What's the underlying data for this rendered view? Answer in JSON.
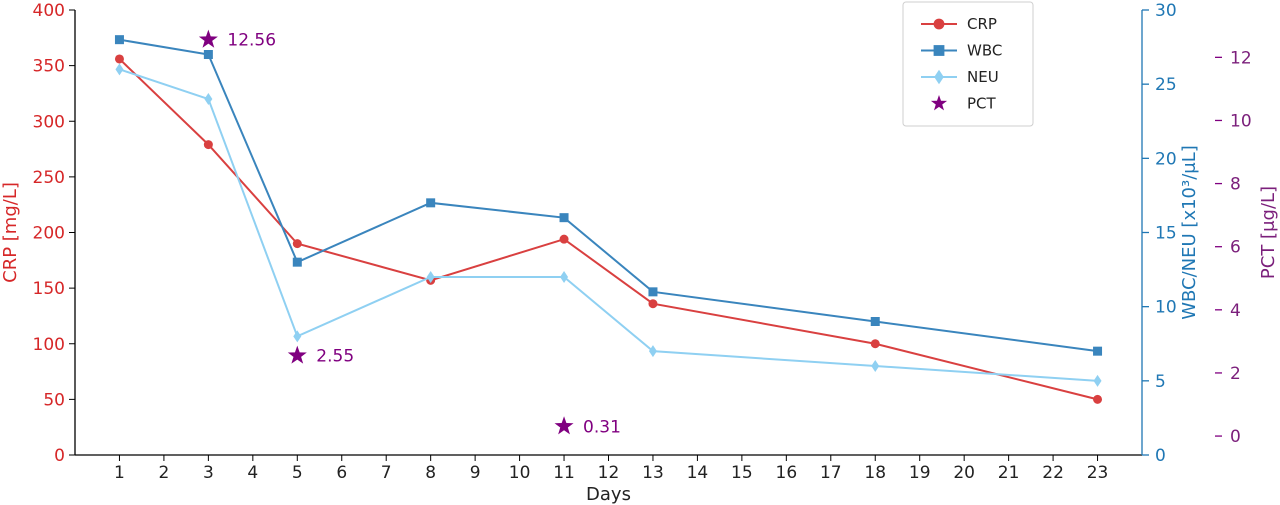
{
  "chart_data": {
    "type": "line",
    "xlabel": "Days",
    "x_ticks": [
      1,
      2,
      3,
      4,
      5,
      6,
      7,
      8,
      9,
      10,
      11,
      12,
      13,
      14,
      15,
      16,
      17,
      18,
      19,
      20,
      21,
      22,
      23
    ],
    "xlim": [
      0,
      24
    ],
    "axes": {
      "crp": {
        "label": "CRP [mg/L]",
        "ylim": [
          0,
          400
        ],
        "ticks": [
          0,
          50,
          100,
          150,
          200,
          250,
          300,
          350,
          400
        ],
        "color": "#d62728"
      },
      "wbc_neu": {
        "label": "WBC/NEU [x10³/μL]",
        "ylim": [
          0,
          30
        ],
        "ticks": [
          0,
          5,
          10,
          15,
          20,
          25,
          30
        ],
        "color": "#1f77b4"
      },
      "pct": {
        "label": "PCT [μg/L]",
        "ylim": [
          -0.6,
          13.5
        ],
        "ticks": [
          0,
          2,
          4,
          6,
          8,
          10,
          12
        ],
        "color": "#800080"
      }
    },
    "series": [
      {
        "name": "CRP",
        "axis": "crp",
        "color": "#d94040",
        "marker": "circle",
        "x": [
          1,
          3,
          5,
          8,
          11,
          13,
          18,
          23
        ],
        "y": [
          356,
          279,
          190,
          157,
          194,
          136,
          100,
          50
        ]
      },
      {
        "name": "WBC",
        "axis": "wbc_neu",
        "color": "#3a85bd",
        "marker": "square",
        "x": [
          1,
          3,
          5,
          8,
          11,
          13,
          18,
          23
        ],
        "y": [
          28,
          27,
          13,
          17,
          16,
          11,
          9,
          7
        ]
      },
      {
        "name": "NEU",
        "axis": "wbc_neu",
        "color": "#8fd0f2",
        "marker": "diamond",
        "x": [
          1,
          3,
          5,
          8,
          11,
          13,
          18,
          23
        ],
        "y": [
          26,
          24,
          8,
          12,
          12,
          7,
          6,
          5
        ]
      },
      {
        "name": "PCT",
        "axis": "pct",
        "color": "#800080",
        "marker": "star",
        "x": [
          3,
          5,
          11
        ],
        "y": [
          12.56,
          2.55,
          0.31
        ],
        "labels": [
          "12.56",
          "2.55",
          "0.31"
        ]
      }
    ],
    "legend": {
      "placement": "top-right",
      "entries": [
        "CRP",
        "WBC",
        "NEU",
        "PCT"
      ]
    },
    "grid": false
  }
}
